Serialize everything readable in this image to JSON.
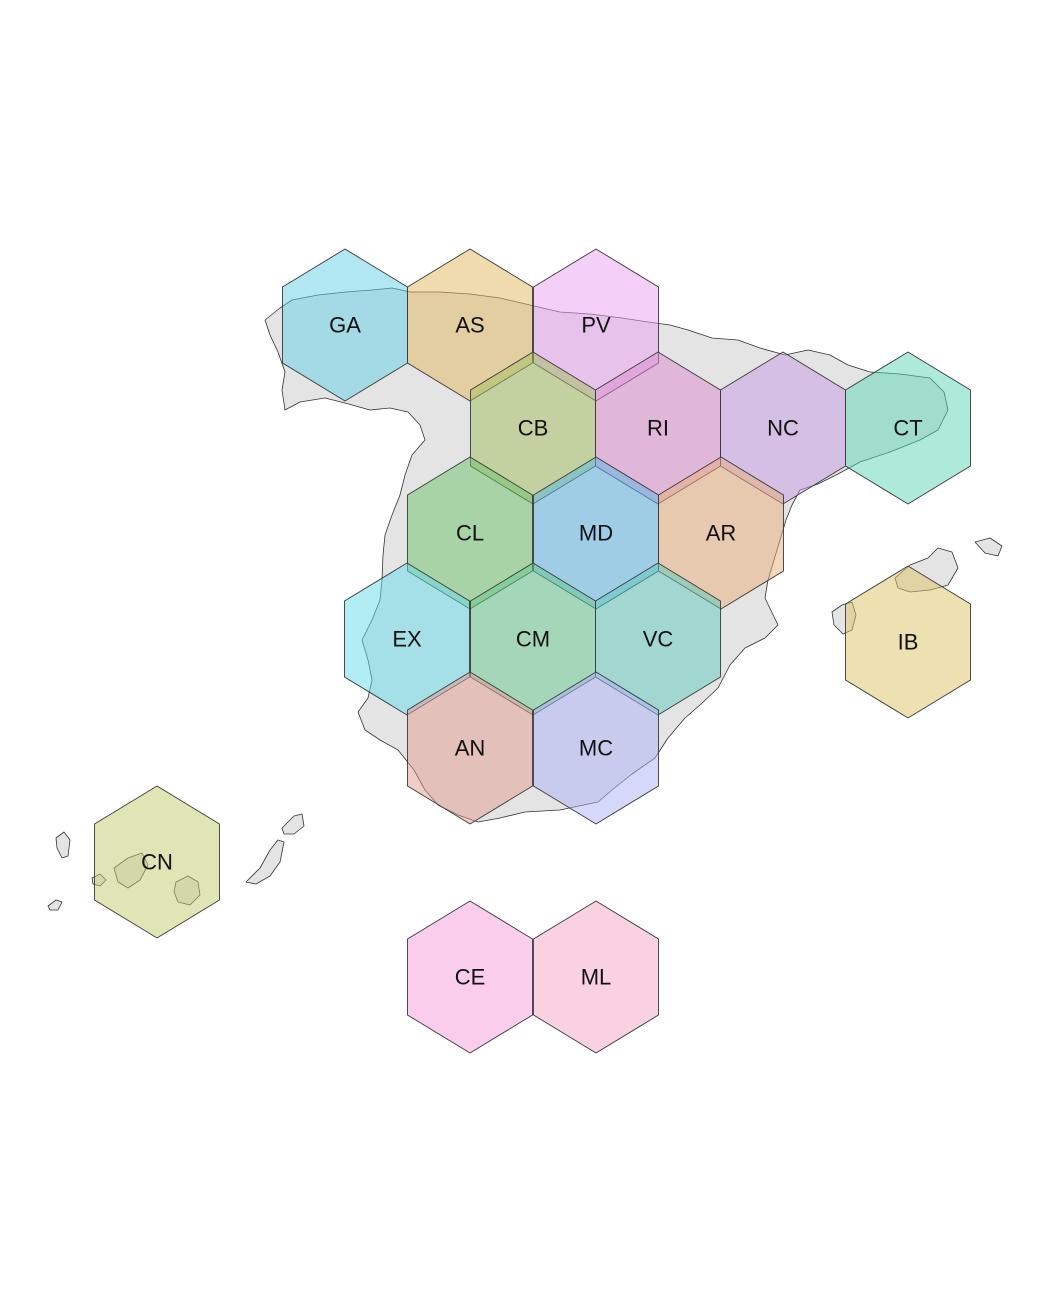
{
  "regions": [
    {
      "code": "GA",
      "color": "#63cde8"
    },
    {
      "code": "AS",
      "color": "#e2b85f"
    },
    {
      "code": "PV",
      "color": "#eaa0f0"
    },
    {
      "code": "CB",
      "color": "#a2be5e"
    },
    {
      "code": "RI",
      "color": "#db8acb"
    },
    {
      "code": "NC",
      "color": "#c59ae3"
    },
    {
      "code": "CT",
      "color": "#5dd5b5"
    },
    {
      "code": "CL",
      "color": "#6bc168"
    },
    {
      "code": "MD",
      "color": "#5ab6e8"
    },
    {
      "code": "AR",
      "color": "#e9ad7a"
    },
    {
      "code": "EX",
      "color": "#66d9ea"
    },
    {
      "code": "CM",
      "color": "#64c78e"
    },
    {
      "code": "VC",
      "color": "#60c7be"
    },
    {
      "code": "IB",
      "color": "#dcc364"
    },
    {
      "code": "AN",
      "color": "#e29b90"
    },
    {
      "code": "MC",
      "color": "#abb2f5"
    },
    {
      "code": "CN",
      "color": "#c2cb6b"
    },
    {
      "code": "CE",
      "color": "#f79bda"
    },
    {
      "code": "ML",
      "color": "#f4a3c2"
    }
  ]
}
